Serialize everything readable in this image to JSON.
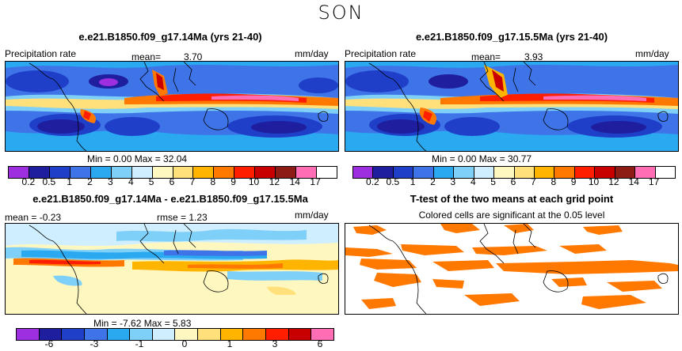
{
  "season": "SON",
  "panels": [
    {
      "title": "e.e21.B1850.f09_g17.14Ma (yrs 21-40)",
      "var": "Precipitation rate",
      "mean_label": "mean=",
      "mean": "3.70",
      "units": "mm/day",
      "min_max": "Min =   0.00 Max =  32.04"
    },
    {
      "title": "e.e21.B1850.f09_g17.15.5Ma (yrs 21-40)",
      "var": "Precipitation rate",
      "mean_label": "mean=",
      "mean": "3.93",
      "units": "mm/day",
      "min_max": "Min =   0.00 Max =  30.77"
    },
    {
      "title": "e.e21.B1850.f09_g17.14Ma - e.e21.B1850.f09_g17.15.5Ma",
      "mean_text": "mean =  -0.23",
      "rmse_text": "rmse =   1.23",
      "units": "mm/day",
      "min_max": "Min =  -7.62 Max =   5.83"
    },
    {
      "title": "T-test of the two means at each grid point",
      "subtitle": "Colored cells are significant at the 0.05 level"
    }
  ],
  "chart_data": [
    {
      "type": "heatmap",
      "title": "e.e21.B1850.f09_g17.14Ma (yrs 21-40)",
      "variable": "Precipitation rate",
      "units": "mm/day",
      "mean": 3.7,
      "min": 0.0,
      "max": 32.04,
      "levels": [
        "0.2",
        "0.5",
        "1",
        "2",
        "3",
        "4",
        "5",
        "6",
        "7",
        "8",
        "9",
        "10",
        "12",
        "14",
        "17"
      ],
      "colors": [
        "#9d2fe0",
        "#1e1e9e",
        "#1f3fc8",
        "#3e74e8",
        "#2aa8f0",
        "#7fd0f8",
        "#cfeeff",
        "#fff7c0",
        "#ffe07a",
        "#ffb400",
        "#ff7800",
        "#ff1e00",
        "#c80000",
        "#8c1c14",
        "#ff6eb4"
      ]
    },
    {
      "type": "heatmap",
      "title": "e.e21.B1850.f09_g17.15.5Ma (yrs 21-40)",
      "variable": "Precipitation rate",
      "units": "mm/day",
      "mean": 3.93,
      "min": 0.0,
      "max": 30.77,
      "levels": [
        "0.2",
        "0.5",
        "1",
        "2",
        "3",
        "4",
        "5",
        "6",
        "7",
        "8",
        "9",
        "10",
        "12",
        "14",
        "17"
      ],
      "colors": [
        "#9d2fe0",
        "#1e1e9e",
        "#1f3fc8",
        "#3e74e8",
        "#2aa8f0",
        "#7fd0f8",
        "#cfeeff",
        "#fff7c0",
        "#ffe07a",
        "#ffb400",
        "#ff7800",
        "#ff1e00",
        "#c80000",
        "#8c1c14",
        "#ff6eb4"
      ]
    },
    {
      "type": "heatmap",
      "title": "e.e21.B1850.f09_g17.14Ma - e.e21.B1850.f09_g17.15.5Ma",
      "units": "mm/day",
      "mean": -0.23,
      "rmse": 1.23,
      "min": -7.62,
      "max": 5.83,
      "levels": [
        "-6",
        "-3",
        "-1",
        "0",
        "1",
        "3",
        "6"
      ],
      "colors": [
        "#9d2fe0",
        "#1e1e9e",
        "#3e74e8",
        "#2aa8f0",
        "#7fd0f8",
        "#cfeeff",
        "#fff7c0",
        "#ffe07a",
        "#ffb400",
        "#ff7800",
        "#ff1e00",
        "#c80000",
        "#ff6eb4"
      ]
    },
    {
      "type": "heatmap",
      "title": "T-test of the two means at each grid point",
      "subtitle": "Colored cells are significant at the 0.05 level",
      "colors": [
        "#ff7800"
      ]
    }
  ]
}
